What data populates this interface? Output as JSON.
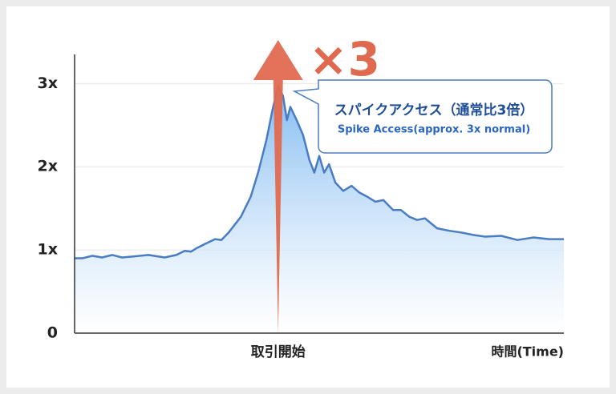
{
  "chart_data": {
    "type": "area",
    "x": [
      0,
      1.6,
      3.6,
      5.6,
      7.7,
      9.7,
      11.8,
      15.1,
      18.4,
      20.8,
      22.5,
      23.8,
      24.9,
      26.6,
      28.7,
      30.0,
      31.5,
      34.0,
      36.0,
      37.5,
      39.2,
      40.5,
      41.6,
      42.6,
      43.4,
      44.1,
      45.4,
      46.7,
      48.0,
      49.0,
      50.0,
      51.0,
      52.0,
      53.3,
      54.9,
      56.6,
      58.2,
      59.8,
      61.5,
      63.1,
      65.1,
      66.7,
      68.4,
      70.0,
      71.6,
      74.1,
      76.6,
      79.0,
      81.5,
      83.9,
      87.2,
      90.5,
      93.8,
      97.0,
      100
    ],
    "values": [
      0.9,
      0.9,
      0.93,
      0.91,
      0.94,
      0.91,
      0.92,
      0.94,
      0.91,
      0.94,
      0.99,
      0.98,
      1.02,
      1.07,
      1.13,
      1.12,
      1.21,
      1.4,
      1.64,
      1.93,
      2.32,
      2.7,
      2.97,
      2.85,
      2.56,
      2.72,
      2.56,
      2.38,
      2.08,
      1.93,
      2.13,
      1.93,
      2.03,
      1.81,
      1.71,
      1.77,
      1.69,
      1.64,
      1.58,
      1.6,
      1.48,
      1.48,
      1.4,
      1.36,
      1.38,
      1.26,
      1.23,
      1.21,
      1.18,
      1.16,
      1.17,
      1.12,
      1.15,
      1.13,
      1.13
    ],
    "color": "#4a7cc4",
    "xlim": [
      0,
      100
    ],
    "xticks": [
      {
        "value": 41.6,
        "label": "取引開始"
      }
    ],
    "x_label": "時間(Time)",
    "ylim": [
      0,
      3.35
    ],
    "yticks": [
      0,
      {
        "value": 1,
        "label": "1x"
      },
      {
        "value": 2,
        "label": "2x"
      },
      {
        "value": 3,
        "label": "3x"
      }
    ],
    "grid": true,
    "annotations": {
      "multiplier": "×3",
      "callout_ja": "スパイクアクセス（通常比3倍）",
      "callout_en": "Spike Access(approx. 3x normal)"
    }
  }
}
